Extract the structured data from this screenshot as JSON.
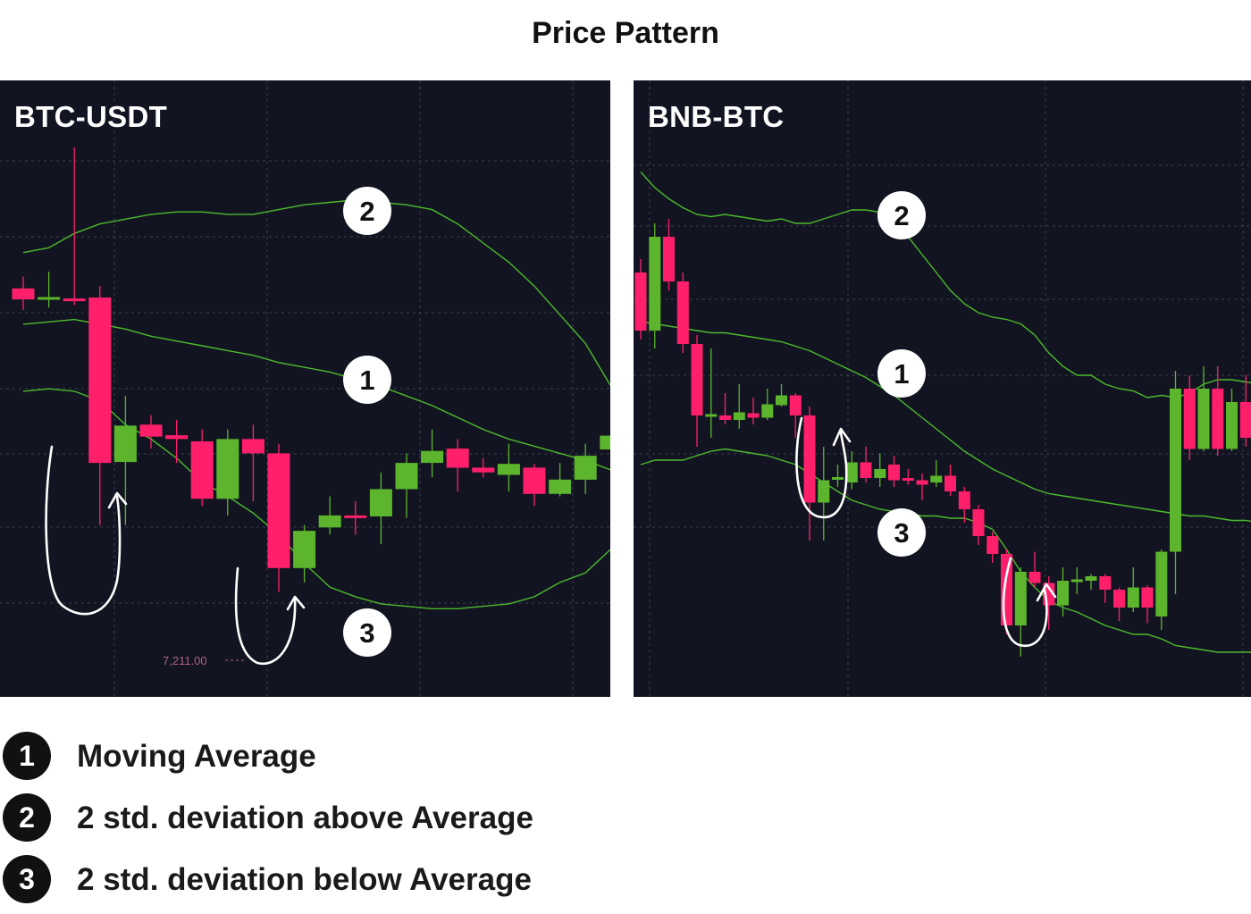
{
  "title": "Price Pattern",
  "colors": {
    "bullish": "#5cb52c",
    "bearish": "#ff1f6b",
    "band": "#4cba2c",
    "background": "#121521",
    "grid": "#3b3f4e",
    "annotation": "#ffffff"
  },
  "chart_data": [
    {
      "type": "candlestick",
      "title": "BTC-USDT",
      "price_label": "7,211.00",
      "price_ylim": [
        0,
        100
      ],
      "candles": [
        {
          "o": 70.5,
          "c": 68.2,
          "h": 73.0,
          "l": 66.0
        },
        {
          "o": 68.3,
          "c": 68.7,
          "h": 74.0,
          "l": 66.5
        },
        {
          "o": 68.4,
          "c": 68.1,
          "h": 100.0,
          "l": 67.0
        },
        {
          "o": 68.6,
          "c": 34.0,
          "h": 71.0,
          "l": 21.0
        },
        {
          "o": 34.2,
          "c": 41.8,
          "h": 48.0,
          "l": 21.0
        },
        {
          "o": 42.0,
          "c": 39.5,
          "h": 44.0,
          "l": 37.0
        },
        {
          "o": 39.8,
          "c": 39.0,
          "h": 43.0,
          "l": 34.0
        },
        {
          "o": 38.5,
          "c": 26.5,
          "h": 41.0,
          "l": 25.0
        },
        {
          "o": 26.5,
          "c": 39.0,
          "h": 41.0,
          "l": 23.0
        },
        {
          "o": 39.0,
          "c": 36.0,
          "h": 42.0,
          "l": 26.0
        },
        {
          "o": 36.0,
          "c": 12.0,
          "h": 38.0,
          "l": 7.0
        },
        {
          "o": 12.0,
          "c": 19.8,
          "h": 21.0,
          "l": 9.0
        },
        {
          "o": 20.5,
          "c": 23.0,
          "h": 27.0,
          "l": 19.0
        },
        {
          "o": 23.0,
          "c": 22.6,
          "h": 26.0,
          "l": 19.0
        },
        {
          "o": 22.8,
          "c": 28.5,
          "h": 32.0,
          "l": 17.0
        },
        {
          "o": 28.5,
          "c": 34.0,
          "h": 36.0,
          "l": 22.5
        },
        {
          "o": 34.0,
          "c": 36.5,
          "h": 41.0,
          "l": 31.0
        },
        {
          "o": 37.0,
          "c": 33.0,
          "h": 39.0,
          "l": 28.0
        },
        {
          "o": 33.0,
          "c": 32.0,
          "h": 35.0,
          "l": 31.0
        },
        {
          "o": 31.5,
          "c": 33.8,
          "h": 38.0,
          "l": 28.0
        },
        {
          "o": 33.0,
          "c": 27.5,
          "h": 33.8,
          "l": 25.0
        },
        {
          "o": 27.5,
          "c": 30.5,
          "h": 34.0,
          "l": 27.0
        },
        {
          "o": 30.5,
          "c": 35.5,
          "h": 38.0,
          "l": 27.5
        },
        {
          "o": 36.8,
          "c": 39.7,
          "h": 45.0,
          "l": 33.5
        },
        {
          "o": 39.5,
          "c": 40.5,
          "h": 42.0,
          "l": 37.0
        }
      ],
      "upper_band": [
        78,
        79,
        82,
        84,
        85,
        86,
        86.5,
        86.5,
        86,
        86,
        87,
        88,
        88.5,
        89,
        88.5,
        88,
        87,
        84,
        80,
        76,
        71,
        65,
        59,
        50,
        48
      ],
      "moving_average": [
        63,
        63.5,
        64,
        63,
        62,
        60.5,
        59.5,
        58.5,
        57.5,
        56.5,
        55,
        54,
        53,
        51.5,
        50,
        48,
        46,
        43.5,
        41,
        39,
        37.5,
        36,
        34.5,
        32.5,
        31.5
      ],
      "lower_band": [
        49,
        49.5,
        49,
        47,
        42,
        39,
        35,
        30,
        27,
        23.5,
        19,
        13,
        8,
        6,
        4.5,
        4,
        3.5,
        3.5,
        4,
        4.5,
        6,
        9,
        11,
        16,
        17
      ],
      "annotations": [
        {
          "label": "1",
          "meaning": "moving_average"
        },
        {
          "label": "2",
          "meaning": "upper_band"
        },
        {
          "label": "3",
          "meaning": "lower_band"
        }
      ]
    },
    {
      "type": "candlestick",
      "title": "BNB-BTC",
      "price_ylim": [
        0,
        100
      ],
      "candles": [
        {
          "o": 77.0,
          "c": 64.0,
          "h": 80.0,
          "l": 62.0
        },
        {
          "o": 64.0,
          "c": 85.0,
          "h": 88.0,
          "l": 60.0
        },
        {
          "o": 85.0,
          "c": 75.0,
          "h": 89.0,
          "l": 73.0
        },
        {
          "o": 75.0,
          "c": 61.0,
          "h": 77.0,
          "l": 59.0
        },
        {
          "o": 61.0,
          "c": 45.0,
          "h": 63.0,
          "l": 38.0
        },
        {
          "o": 45.0,
          "c": 45.3,
          "h": 60.0,
          "l": 40.0
        },
        {
          "o": 45.0,
          "c": 44.0,
          "h": 50.0,
          "l": 43.0
        },
        {
          "o": 44.0,
          "c": 45.7,
          "h": 52.0,
          "l": 42.0
        },
        {
          "o": 45.5,
          "c": 44.5,
          "h": 49.0,
          "l": 43.0
        },
        {
          "o": 44.5,
          "c": 47.5,
          "h": 51.0,
          "l": 44.0
        },
        {
          "o": 47.3,
          "c": 49.5,
          "h": 52.0,
          "l": 47.0
        },
        {
          "o": 49.5,
          "c": 45.0,
          "h": 50.0,
          "l": 40.0
        },
        {
          "o": 45.0,
          "c": 25.5,
          "h": 47.0,
          "l": 17.0
        },
        {
          "o": 25.5,
          "c": 30.5,
          "h": 38.0,
          "l": 17.0
        },
        {
          "o": 31.0,
          "c": 31.2,
          "h": 34.0,
          "l": 29.0
        },
        {
          "o": 30.0,
          "c": 34.5,
          "h": 37.0,
          "l": 28.5
        },
        {
          "o": 34.5,
          "c": 31.0,
          "h": 38.0,
          "l": 30.0
        },
        {
          "o": 31.0,
          "c": 33.0,
          "h": 36.5,
          "l": 29.0
        },
        {
          "o": 34.0,
          "c": 30.5,
          "h": 36.0,
          "l": 29.0
        },
        {
          "o": 31.0,
          "c": 30.7,
          "h": 33.0,
          "l": 29.5
        },
        {
          "o": 30.5,
          "c": 29.5,
          "h": 32.0,
          "l": 26.0
        },
        {
          "o": 30.0,
          "c": 31.5,
          "h": 35.0,
          "l": 29.0
        },
        {
          "o": 31.5,
          "c": 28.0,
          "h": 34.0,
          "l": 27.0
        },
        {
          "o": 28.0,
          "c": 24.0,
          "h": 29.0,
          "l": 21.0
        },
        {
          "o": 24.0,
          "c": 18.0,
          "h": 25.0,
          "l": 16.0
        },
        {
          "o": 18.0,
          "c": 14.0,
          "h": 19.0,
          "l": 12.0
        },
        {
          "o": 14.0,
          "c": -2.0,
          "h": 15.0,
          "l": -4.0
        },
        {
          "o": -2.0,
          "c": 10.0,
          "h": 11.0,
          "l": -9.0
        },
        {
          "o": 10.0,
          "c": 7.5,
          "h": 14.5,
          "l": 6.5
        },
        {
          "o": 7.5,
          "c": 2.5,
          "h": 9.0,
          "l": -3.0
        },
        {
          "o": 2.5,
          "c": 8.0,
          "h": 11.0,
          "l": 0.0
        },
        {
          "o": 8.0,
          "c": 8.3,
          "h": 11.0,
          "l": 5.0
        },
        {
          "o": 8.0,
          "c": 9.0,
          "h": 9.5,
          "l": 6.0
        },
        {
          "o": 9.0,
          "c": 6.0,
          "h": 9.5,
          "l": 3.0
        },
        {
          "o": 6.0,
          "c": 2.0,
          "h": 6.5,
          "l": -1.0
        },
        {
          "o": 2.0,
          "c": 6.5,
          "h": 11.0,
          "l": 1.0
        },
        {
          "o": 6.5,
          "c": 2.0,
          "h": 7.0,
          "l": -1.5
        },
        {
          "o": 0.0,
          "c": 14.5,
          "h": 15.0,
          "l": -3.0
        },
        {
          "o": 14.5,
          "c": 51.0,
          "h": 55.0,
          "l": 5.0
        },
        {
          "o": 51.0,
          "c": 37.5,
          "h": 54.0,
          "l": 35.0
        },
        {
          "o": 37.5,
          "c": 51.0,
          "h": 56.0,
          "l": 37.0
        },
        {
          "o": 51.0,
          "c": 37.5,
          "h": 56.0,
          "l": 36.0
        },
        {
          "o": 37.5,
          "c": 48.0,
          "h": 51.0,
          "l": 37.0
        },
        {
          "o": 48.0,
          "c": 40.0,
          "h": 54.0,
          "l": 38.0
        },
        {
          "o": 38.0,
          "c": 41.0,
          "h": 45.0,
          "l": 36.0
        }
      ],
      "upper_band": [
        99.5,
        96,
        93.5,
        91.5,
        90,
        89.5,
        90,
        89.5,
        89,
        88.5,
        89,
        88,
        88,
        89,
        90,
        91,
        91,
        90.5,
        88.5,
        85,
        81,
        77,
        73,
        70,
        68,
        67,
        66.5,
        65.5,
        63,
        59,
        56,
        54,
        54,
        52,
        51,
        50.5,
        49,
        49.5,
        49,
        50,
        52,
        53,
        53,
        52.5,
        52
      ],
      "moving_average": [
        66,
        65.5,
        65,
        64.5,
        64,
        63.5,
        63.5,
        63,
        62.5,
        62,
        61.5,
        60.5,
        59.5,
        58,
        56.5,
        55,
        53.5,
        51.5,
        49.5,
        47,
        44.5,
        42,
        39.5,
        37,
        35,
        33,
        31.5,
        30,
        28.5,
        27.5,
        27,
        26.5,
        26,
        25.5,
        25,
        24.5,
        24,
        23.5,
        23,
        22.5,
        22.5,
        22,
        21.5,
        21.5,
        21
      ],
      "lower_band": [
        34,
        35,
        35,
        35,
        36,
        37,
        37.5,
        37,
        36.5,
        36,
        35,
        34,
        32,
        30,
        28,
        26,
        25,
        24,
        23.5,
        23,
        22.5,
        22.5,
        22,
        22,
        21,
        19.5,
        15,
        10,
        6.5,
        3.5,
        2,
        1,
        -0.5,
        -2,
        -3,
        -4,
        -4,
        -5,
        -6.5,
        -7,
        -7.5,
        -8,
        -8,
        -8,
        -8
      ],
      "annotations": [
        {
          "label": "1",
          "meaning": "moving_average"
        },
        {
          "label": "2",
          "meaning": "upper_band"
        },
        {
          "label": "3",
          "meaning": "lower_band"
        }
      ]
    }
  ],
  "legend": [
    {
      "num": "1",
      "text": "Moving Average"
    },
    {
      "num": "2",
      "text": "2 std. deviation above Average"
    },
    {
      "num": "3",
      "text": "2 std. deviation below Average"
    }
  ]
}
